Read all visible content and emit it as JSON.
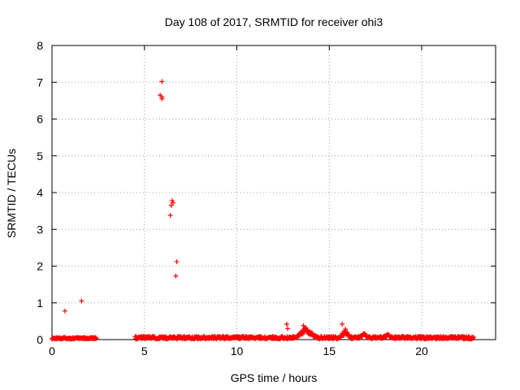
{
  "chart_data": {
    "type": "scatter",
    "title": "Day 108 of 2017, SRMTID for receiver ohi3",
    "xlabel": "GPS time / hours",
    "ylabel": "SRMTID / TECUs",
    "xlim": [
      0,
      24
    ],
    "ylim": [
      0,
      8
    ],
    "x_ticks": [
      0,
      5,
      10,
      15,
      20
    ],
    "y_ticks": [
      0,
      1,
      2,
      3,
      4,
      5,
      6,
      7,
      8
    ],
    "grid": true,
    "marker": "+",
    "series_color": "#ff0000",
    "series": [
      {
        "name": "SRMTID",
        "outliers": [
          {
            "x": 0.7,
            "y": 0.78
          },
          {
            "x": 1.6,
            "y": 1.05
          },
          {
            "x": 5.95,
            "y": 7.02
          },
          {
            "x": 5.85,
            "y": 6.65
          },
          {
            "x": 5.95,
            "y": 6.6
          },
          {
            "x": 5.95,
            "y": 6.55
          },
          {
            "x": 6.5,
            "y": 3.78
          },
          {
            "x": 6.55,
            "y": 3.72
          },
          {
            "x": 6.45,
            "y": 3.65
          },
          {
            "x": 6.4,
            "y": 3.38
          },
          {
            "x": 6.75,
            "y": 2.12
          },
          {
            "x": 6.7,
            "y": 1.73
          },
          {
            "x": 12.7,
            "y": 0.42
          },
          {
            "x": 12.75,
            "y": 0.3
          },
          {
            "x": 15.7,
            "y": 0.42
          },
          {
            "x": 13.6,
            "y": 0.38
          }
        ],
        "baseline_segments": [
          {
            "x_start": 0.0,
            "x_end": 2.4,
            "typical": 0.04
          },
          {
            "x_start": 4.5,
            "x_end": 22.8,
            "typical": 0.06
          }
        ],
        "elevated_intervals": [
          {
            "x_start": 13.0,
            "x_end": 14.5,
            "peak": 0.32
          },
          {
            "x_start": 15.5,
            "x_end": 16.2,
            "peak": 0.3
          },
          {
            "x_start": 16.5,
            "x_end": 17.2,
            "peak": 0.2
          },
          {
            "x_start": 17.8,
            "x_end": 18.5,
            "peak": 0.18
          }
        ]
      }
    ]
  }
}
